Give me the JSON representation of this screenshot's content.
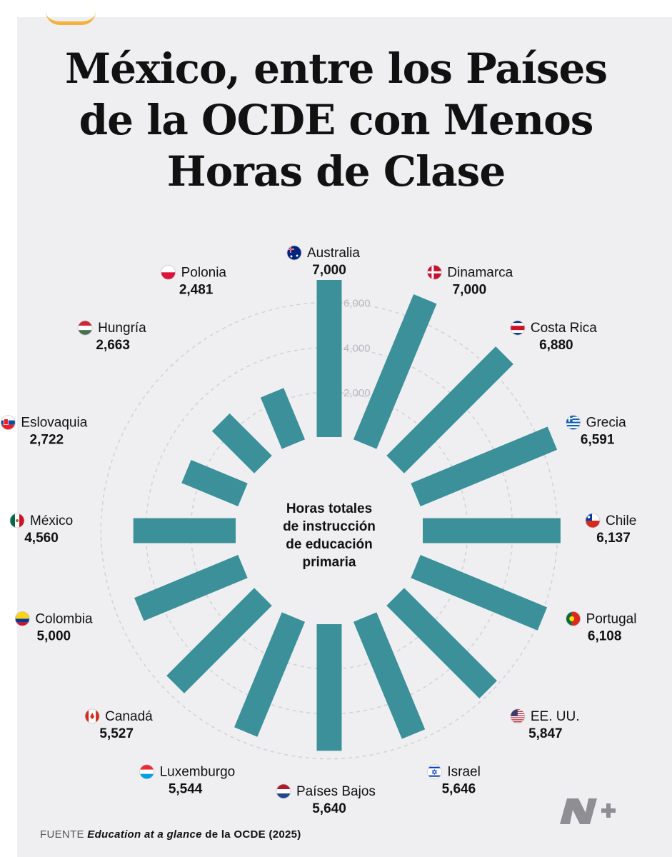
{
  "title_lines": [
    "México, entre los Países",
    "de la OCDE con Menos",
    "Horas de Clase"
  ],
  "center_label_lines": [
    "Horas totales",
    "de instrucción",
    "de educación",
    "primaria"
  ],
  "source": {
    "prefix": "FUENTE",
    "title": "Education at a glance",
    "suffix": "de la OCDE (2025)"
  },
  "colors": {
    "bar": "#3b9099",
    "background": "#efeff1",
    "grid": "#d2d2d6",
    "tick": "#b9b9bd"
  },
  "chart_data": {
    "type": "bar",
    "layout": "radial",
    "categories": [
      "Australia",
      "Dinamarca",
      "Costa Rica",
      "Grecia",
      "Chile",
      "Portugal",
      "EE. UU.",
      "Israel",
      "Países Bajos",
      "Luxemburgo",
      "Canadá",
      "Colombia",
      "México",
      "Eslovaquia",
      "Hungría",
      "Polonia"
    ],
    "value_labels": [
      "7,000",
      "7,000",
      "6,880",
      "6,591",
      "6,137",
      "6,108",
      "5,847",
      "5,646",
      "5,640",
      "5,544",
      "5,527",
      "5,000",
      "4,560",
      "2,722",
      "2,663",
      "2,481"
    ],
    "values": [
      7000,
      7000,
      6880,
      6591,
      6137,
      6108,
      5847,
      5646,
      5640,
      5544,
      5527,
      5000,
      4560,
      2722,
      2663,
      2481
    ],
    "flags": [
      "flag-australia-icon",
      "flag-denmark-icon",
      "flag-costa-rica-icon",
      "flag-greece-icon",
      "flag-chile-icon",
      "flag-portugal-icon",
      "flag-usa-icon",
      "flag-israel-icon",
      "flag-netherlands-icon",
      "flag-luxembourg-icon",
      "flag-canada-icon",
      "flag-colombia-icon",
      "flag-mexico-icon",
      "flag-slovakia-icon",
      "flag-hungary-icon",
      "flag-poland-icon"
    ],
    "radial_ticks": [
      2000,
      4000,
      6000
    ],
    "radial_tick_labels": [
      "2,000",
      "4,000",
      "6,000"
    ],
    "grid": true
  }
}
